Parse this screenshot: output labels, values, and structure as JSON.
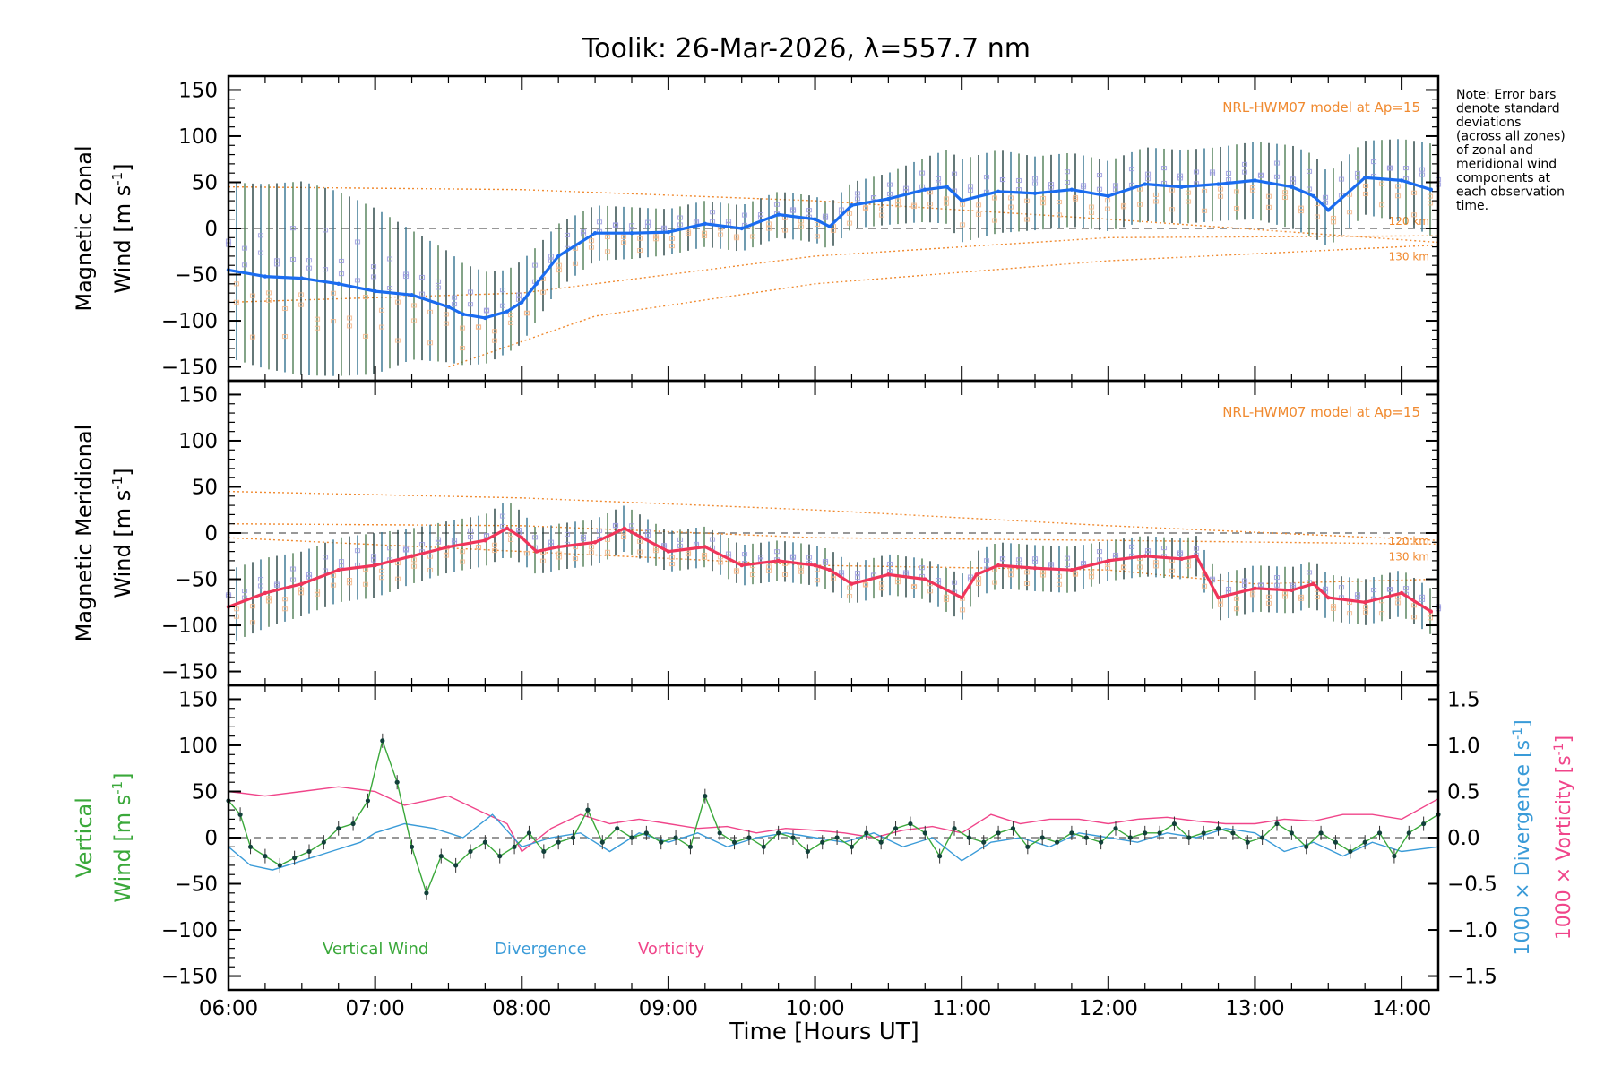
{
  "chart_data": {
    "title": "Toolik: 26-Mar-2026, λ=557.7 nm",
    "note": [
      "Note: Error bars",
      "denote standard",
      "deviations",
      "(across all zones)",
      "of zonal and",
      "meridional wind",
      "components at",
      "each observation",
      "time."
    ],
    "xlabel": "Time [Hours UT]",
    "x_ticks": [
      "06:00",
      "07:00",
      "08:00",
      "09:00",
      "10:00",
      "11:00",
      "12:00",
      "13:00",
      "14:00"
    ],
    "x_range_hours": [
      6.0,
      14.25
    ],
    "y_range": [
      -165,
      165
    ],
    "y_ticks": [
      "150",
      "100",
      "50",
      "0",
      "−50",
      "−100",
      "−150"
    ],
    "panels": [
      {
        "type": "line",
        "name": "zonal",
        "ylabel_line1": "Magnetic Zonal",
        "ylabel_line2": "Wind [m s",
        "ylabel_exp": "-1",
        "ylabel_end": "]",
        "model_label": "NRL-HWM07 model at Ap=15",
        "model_120_label": "120 km",
        "model_130_label": "130 km",
        "series_color": "#1a6cf0",
        "x": [
          6.0,
          6.25,
          6.5,
          6.75,
          7.0,
          7.25,
          7.5,
          7.6,
          7.75,
          7.9,
          8.0,
          8.1,
          8.25,
          8.5,
          8.75,
          9.0,
          9.25,
          9.5,
          9.75,
          10.0,
          10.1,
          10.25,
          10.5,
          10.75,
          10.9,
          11.0,
          11.25,
          11.5,
          11.75,
          12.0,
          12.25,
          12.5,
          12.75,
          13.0,
          13.25,
          13.4,
          13.5,
          13.75,
          14.0,
          14.2
        ],
        "values": [
          -45,
          -52,
          -54,
          -60,
          -68,
          -72,
          -85,
          -93,
          -97,
          -90,
          -80,
          -60,
          -30,
          -5,
          -5,
          -4,
          5,
          0,
          15,
          10,
          2,
          25,
          32,
          42,
          45,
          30,
          40,
          38,
          42,
          35,
          48,
          45,
          48,
          52,
          45,
          35,
          20,
          55,
          52,
          42
        ],
        "error": [
          95,
          100,
          105,
          100,
          90,
          70,
          60,
          55,
          50,
          45,
          45,
          40,
          35,
          30,
          28,
          25,
          25,
          25,
          25,
          25,
          25,
          25,
          28,
          35,
          40,
          45,
          45,
          40,
          40,
          38,
          40,
          40,
          40,
          42,
          45,
          45,
          40,
          40,
          45,
          50
        ],
        "model_curves": [
          {
            "name": "120 km",
            "x": [
              6.0,
              8.0,
              10.0,
              12.0,
              14.25
            ],
            "values": [
              -80,
              -70,
              -30,
              -10,
              -8
            ]
          },
          {
            "name": "130 km",
            "x": [
              6.0,
              8.0,
              10.0,
              12.0,
              14.25
            ],
            "values": [
              45,
              42,
              30,
              10,
              -15
            ]
          },
          {
            "name": "lower",
            "x": [
              7.5,
              8.5,
              10.0,
              12.0,
              14.25
            ],
            "values": [
              -150,
              -95,
              -60,
              -35,
              -18
            ]
          }
        ]
      },
      {
        "type": "line",
        "name": "meridional",
        "ylabel_line1": "Magnetic Meridional",
        "ylabel_line2": "Wind [m s",
        "ylabel_exp": "-1",
        "ylabel_end": "]",
        "model_label": "NRL-HWM07 model at Ap=15",
        "model_120_label": "120 km",
        "model_130_label": "130 km",
        "series_color": "#f0355a",
        "x": [
          6.0,
          6.25,
          6.5,
          6.75,
          7.0,
          7.25,
          7.5,
          7.75,
          7.9,
          8.0,
          8.1,
          8.25,
          8.5,
          8.7,
          9.0,
          9.25,
          9.5,
          9.75,
          10.0,
          10.1,
          10.25,
          10.5,
          10.75,
          11.0,
          11.1,
          11.25,
          11.5,
          11.75,
          12.0,
          12.25,
          12.5,
          12.6,
          12.75,
          13.0,
          13.25,
          13.4,
          13.5,
          13.75,
          14.0,
          14.2
        ],
        "values": [
          -80,
          -65,
          -55,
          -40,
          -35,
          -25,
          -15,
          -8,
          5,
          -5,
          -20,
          -15,
          -10,
          5,
          -20,
          -15,
          -35,
          -30,
          -35,
          -40,
          -55,
          -45,
          -50,
          -70,
          -45,
          -35,
          -38,
          -40,
          -30,
          -25,
          -28,
          -25,
          -70,
          -60,
          -62,
          -55,
          -70,
          -75,
          -65,
          -85
        ],
        "error": [
          40,
          38,
          35,
          35,
          35,
          30,
          28,
          28,
          30,
          28,
          25,
          25,
          25,
          25,
          22,
          22,
          22,
          22,
          22,
          22,
          22,
          22,
          22,
          25,
          25,
          25,
          25,
          25,
          22,
          22,
          22,
          22,
          25,
          25,
          25,
          25,
          25,
          25,
          25,
          25
        ],
        "model_curves": [
          {
            "name": "120 km",
            "x": [
              6.0,
              8.0,
              10.0,
              12.0,
              14.25
            ],
            "values": [
              45,
              38,
              25,
              8,
              -8
            ]
          },
          {
            "name": "130 km",
            "x": [
              6.0,
              8.0,
              10.0,
              12.0,
              14.25
            ],
            "values": [
              10,
              8,
              -5,
              -8,
              -12
            ]
          },
          {
            "name": "lower",
            "x": [
              6.0,
              8.0,
              10.0,
              12.0,
              13.0,
              14.25
            ],
            "values": [
              -5,
              -20,
              -35,
              -40,
              -55,
              -50
            ]
          }
        ]
      },
      {
        "type": "line",
        "name": "vertical",
        "ylabel_line1": "Vertical",
        "ylabel_line2": "Wind [m s",
        "ylabel_exp": "-1",
        "ylabel_end": "]",
        "y2_label_div": "1000 × Divergence [s",
        "y2_label_vort": "1000 × Vorticity [s",
        "y2_exp": "-1",
        "y2_end": "]",
        "y2_range": [
          -1.65,
          1.65
        ],
        "y2_ticks": [
          1.5,
          1.0,
          0.5,
          0.0,
          -0.5,
          -1.0,
          -1.5
        ],
        "y2_tick_labels": [
          "1.5",
          "1.0",
          "0.5",
          "0.0",
          "−0.5",
          "−1.0",
          "−1.5"
        ],
        "legend": [
          {
            "label": "Vertical Wind",
            "color": "#3aa83a"
          },
          {
            "label": "Divergence",
            "color": "#3a9bd8"
          },
          {
            "label": "Vorticity",
            "color": "#f0458a"
          }
        ],
        "vertical_wind": {
          "x": [
            6.0,
            6.08,
            6.15,
            6.25,
            6.35,
            6.45,
            6.55,
            6.65,
            6.75,
            6.85,
            6.95,
            7.05,
            7.15,
            7.25,
            7.35,
            7.45,
            7.55,
            7.65,
            7.75,
            7.85,
            7.95,
            8.05,
            8.15,
            8.25,
            8.35,
            8.45,
            8.55,
            8.65,
            8.75,
            8.85,
            8.95,
            9.05,
            9.15,
            9.25,
            9.35,
            9.45,
            9.55,
            9.65,
            9.75,
            9.85,
            9.95,
            10.05,
            10.15,
            10.25,
            10.35,
            10.45,
            10.55,
            10.65,
            10.75,
            10.85,
            10.95,
            11.05,
            11.15,
            11.25,
            11.35,
            11.45,
            11.55,
            11.65,
            11.75,
            11.85,
            11.95,
            12.05,
            12.15,
            12.25,
            12.35,
            12.45,
            12.55,
            12.65,
            12.75,
            12.85,
            12.95,
            13.05,
            13.15,
            13.25,
            13.35,
            13.45,
            13.55,
            13.65,
            13.75,
            13.85,
            13.95,
            14.05,
            14.15,
            14.25
          ],
          "values": [
            40,
            25,
            -10,
            -20,
            -30,
            -22,
            -15,
            -5,
            10,
            15,
            40,
            105,
            60,
            -10,
            -60,
            -20,
            -30,
            -15,
            -5,
            -20,
            -10,
            5,
            -15,
            -5,
            0,
            30,
            -5,
            10,
            0,
            5,
            -5,
            0,
            -10,
            45,
            5,
            -5,
            0,
            -10,
            5,
            0,
            -15,
            -5,
            0,
            -10,
            5,
            -5,
            10,
            15,
            5,
            -20,
            10,
            0,
            -5,
            5,
            10,
            -10,
            0,
            -5,
            5,
            0,
            -5,
            10,
            0,
            5,
            5,
            15,
            0,
            5,
            10,
            5,
            -5,
            0,
            15,
            5,
            -10,
            5,
            -5,
            -15,
            -5,
            5,
            -20,
            5,
            15,
            25
          ]
        },
        "divergence": {
          "x": [
            6.0,
            6.15,
            6.3,
            6.5,
            6.7,
            6.9,
            7.0,
            7.2,
            7.4,
            7.6,
            7.8,
            8.0,
            8.2,
            8.4,
            8.6,
            8.8,
            9.0,
            9.2,
            9.4,
            9.6,
            9.8,
            10.0,
            10.2,
            10.4,
            10.6,
            10.8,
            11.0,
            11.2,
            11.4,
            11.6,
            11.8,
            12.0,
            12.2,
            12.4,
            12.6,
            12.8,
            13.0,
            13.2,
            13.4,
            13.6,
            13.8,
            14.0,
            14.25
          ],
          "values": [
            -0.1,
            -0.3,
            -0.35,
            -0.25,
            -0.15,
            -0.05,
            0.05,
            0.15,
            0.1,
            0.0,
            0.25,
            -0.1,
            0.0,
            0.05,
            -0.15,
            0.05,
            -0.05,
            0.05,
            -0.1,
            0.0,
            0.05,
            0.0,
            -0.05,
            0.05,
            -0.1,
            0.0,
            -0.25,
            -0.05,
            0.0,
            -0.1,
            0.05,
            0.0,
            -0.05,
            0.05,
            0.0,
            0.1,
            0.05,
            -0.15,
            -0.05,
            -0.2,
            -0.05,
            -0.15,
            -0.1
          ]
        },
        "vorticity": {
          "x": [
            6.0,
            6.25,
            6.5,
            6.75,
            7.0,
            7.2,
            7.5,
            7.7,
            7.9,
            8.0,
            8.2,
            8.4,
            8.6,
            8.8,
            9.0,
            9.2,
            9.4,
            9.6,
            9.8,
            10.0,
            10.2,
            10.4,
            10.6,
            10.8,
            11.0,
            11.2,
            11.4,
            11.6,
            11.8,
            12.0,
            12.2,
            12.4,
            12.6,
            12.8,
            13.0,
            13.2,
            13.4,
            13.6,
            13.8,
            14.0,
            14.25
          ],
          "values": [
            0.5,
            0.45,
            0.5,
            0.55,
            0.5,
            0.35,
            0.45,
            0.3,
            0.15,
            -0.15,
            0.1,
            0.25,
            0.15,
            0.2,
            0.15,
            0.1,
            0.12,
            0.05,
            0.1,
            0.08,
            0.05,
            0.0,
            0.08,
            0.12,
            0.05,
            0.25,
            0.15,
            0.2,
            0.2,
            0.15,
            0.2,
            0.22,
            0.18,
            0.15,
            0.15,
            0.2,
            0.18,
            0.25,
            0.25,
            0.2,
            0.42
          ]
        }
      }
    ]
  }
}
